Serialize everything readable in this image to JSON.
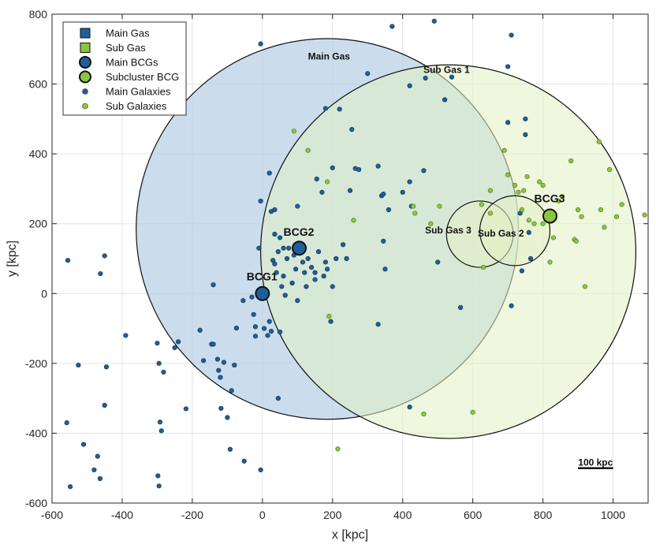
{
  "chart_data": {
    "type": "scatter",
    "xlabel": "x [kpc]",
    "ylabel": "y [kpc]",
    "xlim": [
      -600,
      1100
    ],
    "ylim": [
      -600,
      800
    ],
    "xticks": [
      -600,
      -400,
      -200,
      0,
      200,
      400,
      600,
      800,
      1000
    ],
    "yticks": [
      -600,
      -400,
      -200,
      0,
      200,
      400,
      600,
      800
    ],
    "grid": true,
    "legend_position": "top-left",
    "colors": {
      "main": "#1f5f99",
      "main_fill": "#b7d0e6",
      "sub": "#8cc63f",
      "sub_fill": "#e3f0c4"
    },
    "legend": [
      {
        "label": "Main Gas",
        "marker": "square",
        "color": "#1f5f99"
      },
      {
        "label": "Sub Gas",
        "marker": "square",
        "color": "#8cc63f"
      },
      {
        "label": "Main BCGs",
        "marker": "big-circle",
        "color": "#1f5f99"
      },
      {
        "label": "Subcluster BCG",
        "marker": "big-circle",
        "color": "#8cc63f"
      },
      {
        "label": "Main Galaxies",
        "marker": "dot",
        "color": "#1f5f99"
      },
      {
        "label": "Sub Galaxies",
        "marker": "dot",
        "color": "#8cc63f"
      }
    ],
    "gas_regions": [
      {
        "name": "Main Gas",
        "cx": 185,
        "cy": 185,
        "r": 545,
        "group": "main"
      },
      {
        "name": "Sub Gas 1",
        "cx": 530,
        "cy": 120,
        "r": 535,
        "group": "sub"
      },
      {
        "name": "Sub Gas 3",
        "cx": 620,
        "cy": 170,
        "r": 95,
        "group": "sub"
      },
      {
        "name": "Sub Gas 2",
        "cx": 720,
        "cy": 180,
        "r": 100,
        "group": "sub"
      }
    ],
    "region_labels": [
      {
        "text": "Main Gas",
        "x": 190,
        "y": 670
      },
      {
        "text": "Sub Gas 1",
        "x": 525,
        "y": 632
      },
      {
        "text": "Sub Gas 3",
        "x": 530,
        "y": 172
      },
      {
        "text": "Sub Gas 2",
        "x": 680,
        "y": 163
      }
    ],
    "bcgs": [
      {
        "name": "BCG1",
        "x": 0,
        "y": 0,
        "group": "main"
      },
      {
        "name": "BCG2",
        "x": 105,
        "y": 130,
        "group": "main"
      },
      {
        "name": "BCG3",
        "x": 820,
        "y": 222,
        "group": "sub"
      }
    ],
    "bcg_labels": [
      {
        "text": "BCG1",
        "x": -45,
        "y": 38
      },
      {
        "text": "BCG2",
        "x": 60,
        "y": 165
      },
      {
        "text": "BCG3",
        "x": 775,
        "y": 262
      }
    ],
    "scale_bar": {
      "label": "100 kpc",
      "x1": 900,
      "x2": 1000,
      "y": -500
    },
    "main_galaxies": [
      [
        -555,
        95
      ],
      [
        -450,
        108
      ],
      [
        -462,
        57
      ],
      [
        -390,
        -120
      ],
      [
        -525,
        -205
      ],
      [
        -445,
        -210
      ],
      [
        -450,
        -320
      ],
      [
        -558,
        -370
      ],
      [
        -510,
        -432
      ],
      [
        -470,
        -466
      ],
      [
        -480,
        -505
      ],
      [
        -463,
        -530
      ],
      [
        -548,
        -553
      ],
      [
        -300,
        -142
      ],
      [
        -295,
        -200
      ],
      [
        -282,
        -225
      ],
      [
        -292,
        -368
      ],
      [
        -288,
        -393
      ],
      [
        -298,
        -522
      ],
      [
        -295,
        -551
      ],
      [
        -250,
        -155
      ],
      [
        -240,
        -138
      ],
      [
        -218,
        -330
      ],
      [
        -178,
        -105
      ],
      [
        -168,
        -192
      ],
      [
        -145,
        -145
      ],
      [
        -140,
        -145
      ],
      [
        -140,
        25
      ],
      [
        -128,
        -188
      ],
      [
        -125,
        -220
      ],
      [
        -120,
        -240
      ],
      [
        -118,
        -329
      ],
      [
        -110,
        -197
      ],
      [
        -100,
        -355
      ],
      [
        -92,
        -446
      ],
      [
        -88,
        -278
      ],
      [
        -80,
        -205
      ],
      [
        -74,
        -99
      ],
      [
        -55,
        -20
      ],
      [
        -52,
        -480
      ],
      [
        -30,
        -10
      ],
      [
        -25,
        -60
      ],
      [
        -20,
        -95
      ],
      [
        -20,
        -122
      ],
      [
        -5,
        -505
      ],
      [
        5,
        -100
      ],
      [
        15,
        -120
      ],
      [
        20,
        -80
      ],
      [
        25,
        -108
      ],
      [
        50,
        -110
      ],
      [
        30,
        95
      ],
      [
        35,
        85
      ],
      [
        40,
        60
      ],
      [
        45,
        120
      ],
      [
        55,
        20
      ],
      [
        60,
        50
      ],
      [
        65,
        -5
      ],
      [
        70,
        100
      ],
      [
        75,
        130
      ],
      [
        85,
        30
      ],
      [
        90,
        110
      ],
      [
        95,
        70
      ],
      [
        100,
        -20
      ],
      [
        110,
        140
      ],
      [
        115,
        90
      ],
      [
        120,
        60
      ],
      [
        125,
        20
      ],
      [
        130,
        100
      ],
      [
        140,
        75
      ],
      [
        150,
        40
      ],
      [
        160,
        120
      ],
      [
        175,
        50
      ],
      [
        180,
        90
      ],
      [
        185,
        70
      ],
      [
        195,
        -80
      ],
      [
        200,
        20
      ],
      [
        210,
        100
      ],
      [
        50,
        160
      ],
      [
        60,
        130
      ],
      [
        100,
        250
      ],
      [
        155,
        328
      ],
      [
        170,
        290
      ],
      [
        200,
        360
      ],
      [
        180,
        530
      ],
      [
        220,
        528
      ],
      [
        300,
        630
      ],
      [
        340,
        280
      ],
      [
        360,
        240
      ],
      [
        330,
        365
      ],
      [
        370,
        765
      ],
      [
        420,
        595
      ],
      [
        460,
        352
      ],
      [
        465,
        617
      ],
      [
        490,
        780
      ],
      [
        500,
        90
      ],
      [
        400,
        290
      ],
      [
        420,
        320
      ],
      [
        425,
        250
      ],
      [
        350,
        70
      ],
      [
        330,
        -88
      ],
      [
        255,
        470
      ],
      [
        265,
        358
      ],
      [
        275,
        355
      ],
      [
        420,
        -325
      ],
      [
        520,
        555
      ],
      [
        540,
        620
      ],
      [
        565,
        -40
      ],
      [
        700,
        650
      ],
      [
        710,
        740
      ],
      [
        700,
        490
      ],
      [
        750,
        500
      ],
      [
        750,
        455
      ],
      [
        735,
        230
      ],
      [
        740,
        65
      ],
      [
        760,
        175
      ],
      [
        765,
        100
      ],
      [
        710,
        -35
      ],
      [
        -5,
        715
      ],
      [
        -5,
        265
      ],
      [
        -10,
        130
      ],
      [
        20,
        345
      ],
      [
        25,
        235
      ],
      [
        35,
        240
      ],
      [
        35,
        170
      ],
      [
        230,
        140
      ],
      [
        250,
        295
      ],
      [
        345,
        150
      ],
      [
        345,
        285
      ],
      [
        240,
        100
      ],
      [
        150,
        60
      ],
      [
        45,
        -300
      ]
    ],
    "sub_galaxies": [
      [
        90,
        465
      ],
      [
        130,
        410
      ],
      [
        185,
        320
      ],
      [
        190,
        -65
      ],
      [
        215,
        -445
      ],
      [
        260,
        210
      ],
      [
        430,
        250
      ],
      [
        435,
        230
      ],
      [
        460,
        -345
      ],
      [
        480,
        200
      ],
      [
        505,
        250
      ],
      [
        600,
        -340
      ],
      [
        625,
        255
      ],
      [
        630,
        75
      ],
      [
        650,
        295
      ],
      [
        650,
        230
      ],
      [
        690,
        410
      ],
      [
        700,
        340
      ],
      [
        720,
        310
      ],
      [
        730,
        290
      ],
      [
        740,
        240
      ],
      [
        745,
        295
      ],
      [
        755,
        335
      ],
      [
        760,
        210
      ],
      [
        775,
        200
      ],
      [
        790,
        320
      ],
      [
        800,
        310
      ],
      [
        800,
        200
      ],
      [
        820,
        90
      ],
      [
        830,
        160
      ],
      [
        845,
        265
      ],
      [
        855,
        278
      ],
      [
        880,
        380
      ],
      [
        890,
        155
      ],
      [
        900,
        240
      ],
      [
        910,
        220
      ],
      [
        920,
        20
      ],
      [
        960,
        435
      ],
      [
        965,
        240
      ],
      [
        975,
        190
      ],
      [
        990,
        355
      ],
      [
        1010,
        220
      ],
      [
        1025,
        255
      ],
      [
        1090,
        225
      ],
      [
        895,
        150
      ]
    ]
  }
}
